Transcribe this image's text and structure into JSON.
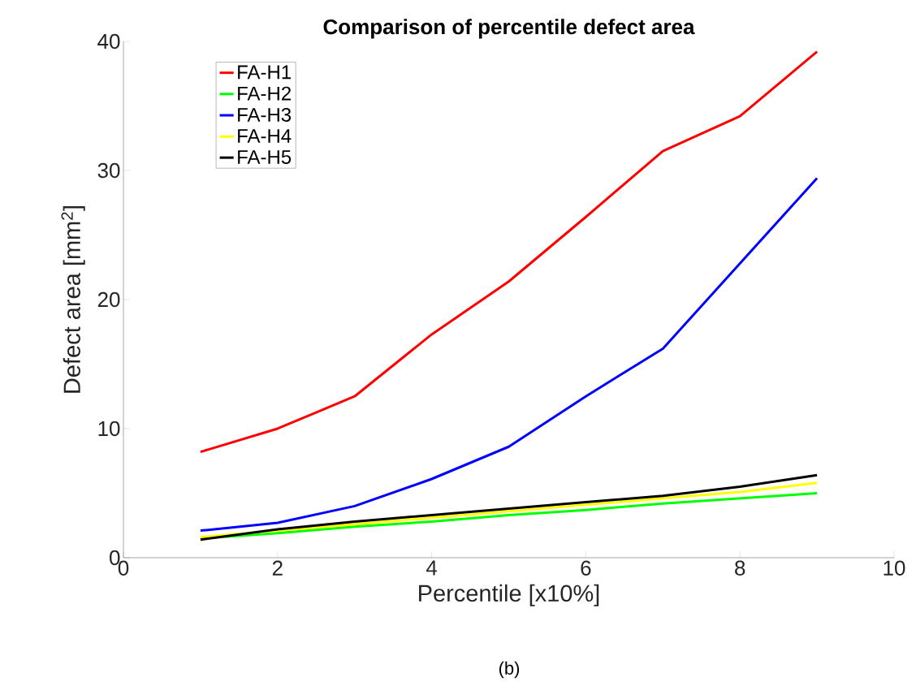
{
  "chart_data": {
    "type": "line",
    "title": "Comparison of percentile defect area",
    "xlabel": "Percentile [x10%]",
    "ylabel": "Defect area [mm$^{2}$]",
    "annotations": [
      "(b)"
    ],
    "x": [
      1,
      2,
      3,
      4,
      5,
      6,
      7,
      8,
      9
    ],
    "series": [
      {
        "name": "FA-H1",
        "color": "#ff0000",
        "values": [
          8.2,
          10.0,
          12.5,
          17.3,
          21.4,
          26.4,
          31.5,
          34.2,
          39.2
        ]
      },
      {
        "name": "FA-H2",
        "color": "#00ff00",
        "values": [
          1.5,
          1.9,
          2.4,
          2.8,
          3.3,
          3.7,
          4.2,
          4.6,
          5.0
        ]
      },
      {
        "name": "FA-H3",
        "color": "#0000ff",
        "values": [
          2.1,
          2.7,
          4.0,
          6.1,
          8.6,
          12.5,
          16.2,
          22.8,
          29.4
        ]
      },
      {
        "name": "FA-H4",
        "color": "#ffff00",
        "values": [
          1.6,
          2.1,
          2.6,
          3.1,
          3.6,
          4.1,
          4.6,
          5.1,
          5.8
        ]
      },
      {
        "name": "FA-H5",
        "color": "#000000",
        "values": [
          1.4,
          2.2,
          2.8,
          3.3,
          3.8,
          4.3,
          4.8,
          5.5,
          6.4
        ]
      }
    ],
    "xlim": [
      0,
      10
    ],
    "xticks": [
      0,
      2,
      4,
      6,
      8,
      10
    ],
    "ylim": [
      0,
      40
    ],
    "yticks": [
      0,
      10,
      20,
      30,
      40
    ],
    "grid": false,
    "legend": "top left",
    "marker": "none",
    "line_style": "solid"
  }
}
